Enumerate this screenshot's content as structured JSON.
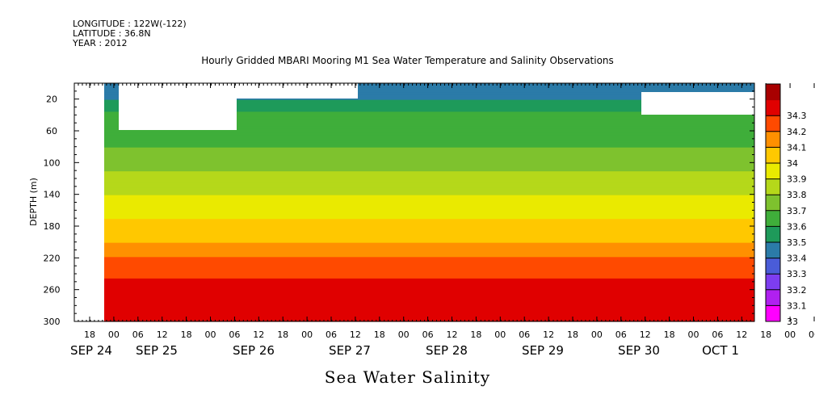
{
  "header": {
    "longitude": "LONGITUDE : 122W(-122)",
    "latitude": "LATITUDE : 36.8N",
    "year": "YEAR : 2012"
  },
  "chart_data": {
    "type": "heatmap",
    "title": "Hourly Gridded MBARI Mooring M1 Sea Water Temperature and Salinity Observations",
    "variable_label": "Sea Water Salinity",
    "ylabel": "DEPTH (m)",
    "ylim": [
      300,
      0
    ],
    "y_ticks": [
      20,
      60,
      100,
      140,
      180,
      220,
      260,
      300
    ],
    "x_hour_ticks": [
      "18",
      "00",
      "06",
      "12",
      "18",
      "00",
      "06",
      "12",
      "18",
      "00",
      "06",
      "12",
      "18",
      "00",
      "06",
      "12",
      "18",
      "00",
      "06",
      "12",
      "18",
      "00",
      "06",
      "12",
      "18",
      "00",
      "06",
      "12",
      "18",
      "00",
      "06",
      "12"
    ],
    "x_date_labels": [
      "SEP 24",
      "SEP 25",
      "SEP 26",
      "SEP 27",
      "SEP 28",
      "SEP 29",
      "SEP 30",
      "OCT  1"
    ],
    "colorbar": {
      "levels": [
        33.0,
        33.1,
        33.2,
        33.3,
        33.4,
        33.5,
        33.6,
        33.7,
        33.8,
        33.9,
        34.0,
        34.1,
        34.2,
        34.3
      ],
      "colors": [
        "#ff00ff",
        "#b020f0",
        "#7d3df0",
        "#4a5cd8",
        "#2b7ba8",
        "#1e9a5a",
        "#3fae3a",
        "#7ec22e",
        "#b5d81a",
        "#eaea00",
        "#ffc800",
        "#ff9000",
        "#ff4a00",
        "#e00000",
        "#a80000"
      ]
    },
    "salinity_profile": [
      {
        "depth": 10,
        "salinity": 33.3
      },
      {
        "depth": 25,
        "salinity": 33.45
      },
      {
        "depth": 50,
        "salinity": 33.55
      },
      {
        "depth": 80,
        "salinity": 33.6
      },
      {
        "depth": 110,
        "salinity": 33.7
      },
      {
        "depth": 140,
        "salinity": 33.8
      },
      {
        "depth": 170,
        "salinity": 33.9
      },
      {
        "depth": 200,
        "salinity": 34.0
      },
      {
        "depth": 230,
        "salinity": 34.15
      },
      {
        "depth": 260,
        "salinity": 34.25
      },
      {
        "depth": 300,
        "salinity": 34.25
      }
    ]
  }
}
